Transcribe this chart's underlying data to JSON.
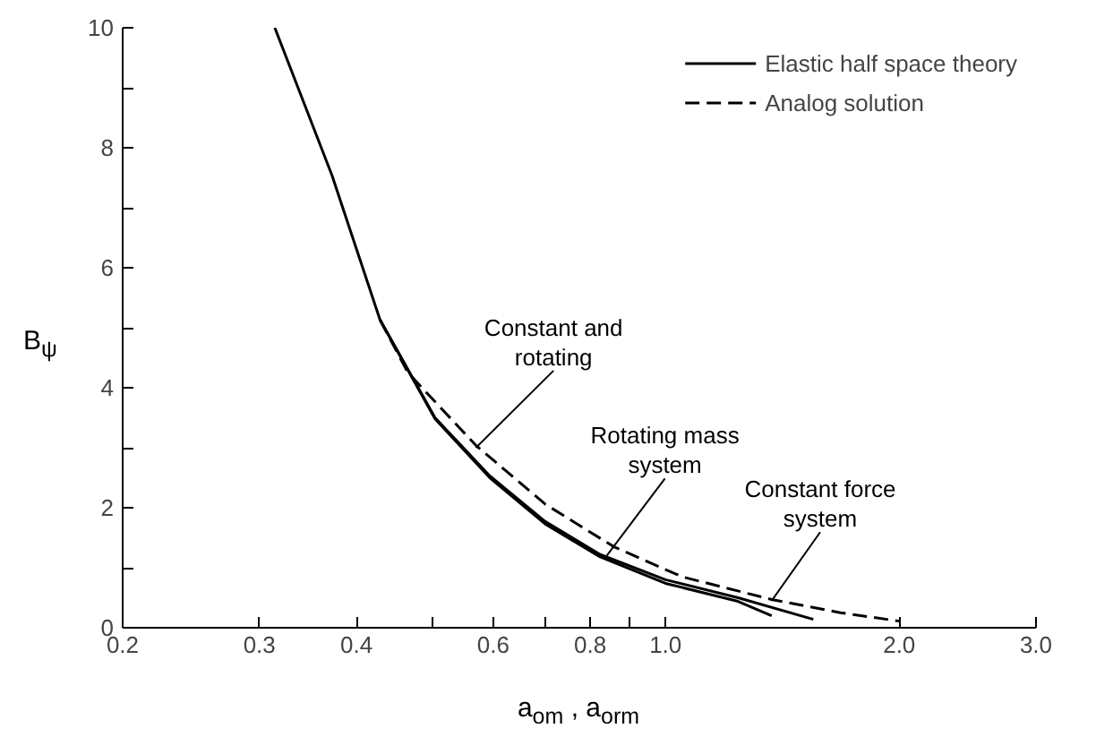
{
  "chart_data": {
    "type": "line",
    "xlabel": "a$_{om}$ , a$_{orm}$",
    "ylabel": "B$_{ψ}$",
    "log": "x",
    "xlim": [
      0.2,
      3.0
    ],
    "ylim": [
      0,
      10
    ],
    "xticks": [
      0.2,
      0.3,
      0.4,
      {
        "value": 0.5,
        "label": null
      },
      0.6,
      {
        "value": 0.7,
        "label": null
      },
      0.8,
      {
        "value": 0.9,
        "label": null
      },
      {
        "value": 1.0,
        "label": "1.0"
      },
      {
        "value": 2.0,
        "label": "2.0"
      },
      {
        "value": 3.0,
        "label": "3.0"
      }
    ],
    "yticks": [
      0,
      {
        "value": 1,
        "label": null
      },
      2,
      {
        "value": 3,
        "label": null
      },
      4,
      {
        "value": 5,
        "label": null
      },
      6,
      {
        "value": 7,
        "label": null
      },
      8,
      {
        "value": 9,
        "label": null
      },
      10
    ],
    "grid": false,
    "legend": "top right",
    "marker": "none",
    "series": [
      {
        "name": "Elastic half space theory",
        "color": "#000000",
        "line_style": "solid",
        "x": [
          0.314,
          0.372,
          0.429,
          0.505,
          0.594,
          0.7,
          0.824,
          1.0,
          1.24,
          1.37
        ],
        "values": [
          10,
          7.54,
          5.13,
          3.48,
          2.5,
          1.73,
          1.18,
          0.74,
          0.44,
          0.2
        ]
      },
      {
        "color": "#000000",
        "line_style": "solid",
        "x": [
          0.429,
          0.505,
          0.594,
          0.7,
          0.824,
          1.0,
          1.24,
          1.55
        ],
        "values": [
          5.13,
          3.5,
          2.53,
          1.77,
          1.22,
          0.8,
          0.5,
          0.14
        ]
      },
      {
        "name": "Analog solution",
        "color": "#000000",
        "line_style": "dashed",
        "x": [
          0.429,
          0.466,
          0.57,
          0.7,
          0.858,
          1.05,
          1.37,
          1.68,
          2.0
        ],
        "values": [
          5.13,
          4.25,
          3.04,
          2.06,
          1.35,
          0.85,
          0.47,
          0.25,
          0.11
        ]
      }
    ],
    "annotations": [
      {
        "text": "Constant and\nrotating",
        "x": 0.57,
        "y": 3.0
      },
      {
        "text": "Rotating mass\nsystem",
        "x": 0.84,
        "y": 1.2
      },
      {
        "text": "Constant force\nsystem",
        "x": 1.37,
        "y": 0.45
      }
    ]
  }
}
